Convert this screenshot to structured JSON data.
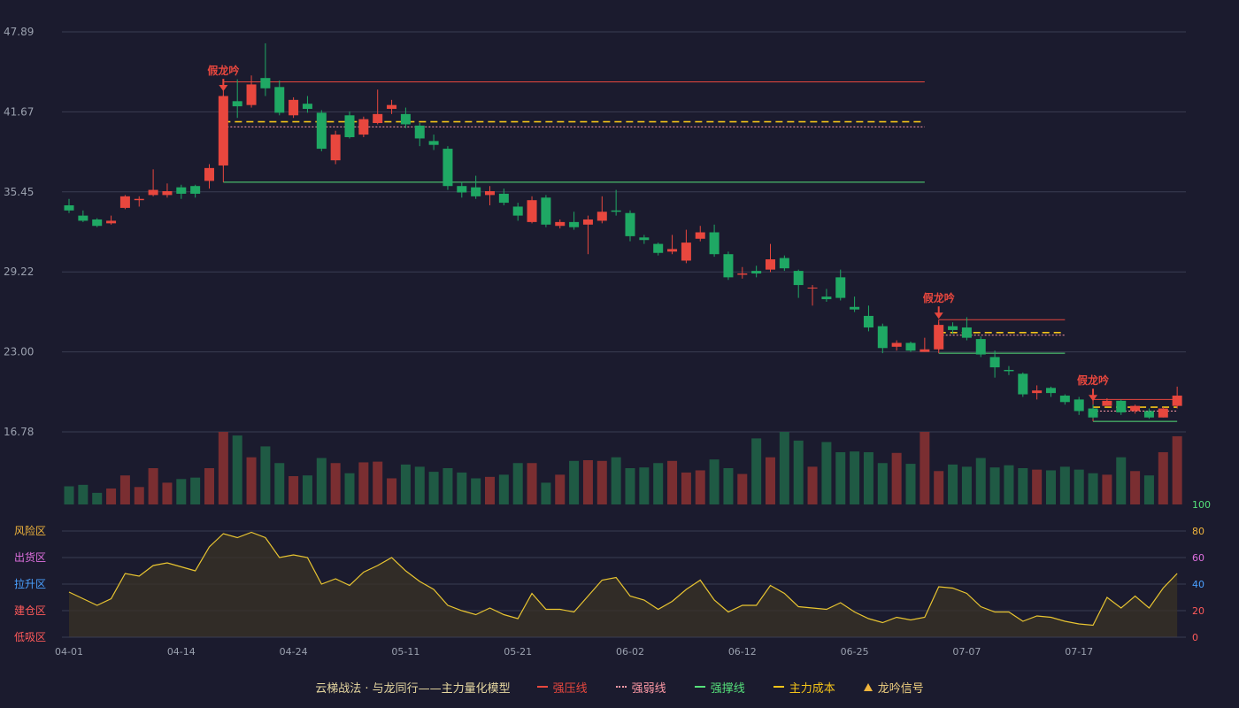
{
  "colors": {
    "background": "#1b1b2e",
    "up": "#e8473e",
    "down": "#1fa864",
    "up_volume": "#7a2e31",
    "down_volume": "#1f5a44",
    "resistance": "#e8473e",
    "weak": "#ff9aa6",
    "support": "#55e07a",
    "cost": "#f3c319",
    "risk_line": "#e9c531",
    "axis_text": "#9aa0ae",
    "grid": "#3a3d52"
  },
  "legend": {
    "title": "云梯战法 · 与龙同行——主力量化模型",
    "strong_pressure": "强压线",
    "weak_line": "强弱线",
    "support_line": "强撑线",
    "main_cost": "主力成本",
    "signal": "龙吟信号"
  },
  "signal_label": "假龙吟",
  "zone_labels": [
    "风险区",
    "出货区",
    "拉升区",
    "建仓区",
    "低吸区"
  ],
  "chart_data": {
    "type": "candlestick",
    "ylim": [
      16.78,
      47.89
    ],
    "y_ticks": [
      "47.89",
      "41.67",
      "35.45",
      "29.22",
      "23.00",
      "16.78"
    ],
    "x_tick_labels": [
      {
        "index": 0,
        "label": "04-01"
      },
      {
        "index": 8,
        "label": "04-14"
      },
      {
        "index": 16,
        "label": "04-24"
      },
      {
        "index": 24,
        "label": "05-11"
      },
      {
        "index": 32,
        "label": "05-21"
      },
      {
        "index": 40,
        "label": "06-02"
      },
      {
        "index": 48,
        "label": "06-12"
      },
      {
        "index": 56,
        "label": "06-25"
      },
      {
        "index": 64,
        "label": "07-07"
      },
      {
        "index": 72,
        "label": "07-17"
      }
    ],
    "candles": [
      [
        34.4,
        34.0,
        34.9,
        33.8
      ],
      [
        33.6,
        33.2,
        34.0,
        33.1
      ],
      [
        33.3,
        32.8,
        33.4,
        32.7
      ],
      [
        33.0,
        33.2,
        33.6,
        32.9
      ],
      [
        34.2,
        35.1,
        35.2,
        34.1
      ],
      [
        34.8,
        34.9,
        35.1,
        34.3
      ],
      [
        35.2,
        35.6,
        37.2,
        35.1
      ],
      [
        35.2,
        35.5,
        36.1,
        35.0
      ],
      [
        35.8,
        35.3,
        36.0,
        34.9
      ],
      [
        35.9,
        35.3,
        36.0,
        35.0
      ],
      [
        36.3,
        37.3,
        37.6,
        35.7
      ],
      [
        37.5,
        42.9,
        43.0,
        37.4
      ],
      [
        42.5,
        42.1,
        44.2,
        41.2
      ],
      [
        42.2,
        43.8,
        44.5,
        42.0
      ],
      [
        44.3,
        43.5,
        47.0,
        42.9
      ],
      [
        43.6,
        41.6,
        44.1,
        41.4
      ],
      [
        41.4,
        42.6,
        42.8,
        41.2
      ],
      [
        42.3,
        41.9,
        42.9,
        41.6
      ],
      [
        41.6,
        38.8,
        41.8,
        38.6
      ],
      [
        37.9,
        39.9,
        40.2,
        37.6
      ],
      [
        41.4,
        39.7,
        41.7,
        39.6
      ],
      [
        39.9,
        41.1,
        41.3,
        39.7
      ],
      [
        40.8,
        41.5,
        43.4,
        40.7
      ],
      [
        41.9,
        42.2,
        42.6,
        41.5
      ],
      [
        41.5,
        40.7,
        42.0,
        40.4
      ],
      [
        40.6,
        39.6,
        40.8,
        39.0
      ],
      [
        39.4,
        39.1,
        39.9,
        38.7
      ],
      [
        38.8,
        35.9,
        39.0,
        35.6
      ],
      [
        35.9,
        35.4,
        36.2,
        35.0
      ],
      [
        35.8,
        35.1,
        36.7,
        34.9
      ],
      [
        35.2,
        35.5,
        35.9,
        34.4
      ],
      [
        35.3,
        34.6,
        35.7,
        34.4
      ],
      [
        34.3,
        33.6,
        34.6,
        33.2
      ],
      [
        33.1,
        34.8,
        35.1,
        33.0
      ],
      [
        35.0,
        32.9,
        35.2,
        32.7
      ],
      [
        32.8,
        33.1,
        33.3,
        32.6
      ],
      [
        33.1,
        32.7,
        33.9,
        32.5
      ],
      [
        32.9,
        33.3,
        33.6,
        30.6
      ],
      [
        33.2,
        33.9,
        35.1,
        33.0
      ],
      [
        34.0,
        33.9,
        35.6,
        33.6
      ],
      [
        33.8,
        32.0,
        34.0,
        31.6
      ],
      [
        31.9,
        31.7,
        32.1,
        31.4
      ],
      [
        31.4,
        30.7,
        31.5,
        30.5
      ],
      [
        30.8,
        31.0,
        32.1,
        30.6
      ],
      [
        30.1,
        31.5,
        32.5,
        29.9
      ],
      [
        31.8,
        32.3,
        32.8,
        31.6
      ],
      [
        32.3,
        30.6,
        32.9,
        30.4
      ],
      [
        30.6,
        28.8,
        30.8,
        28.6
      ],
      [
        29.0,
        29.1,
        29.6,
        28.7
      ],
      [
        29.3,
        29.1,
        29.7,
        28.8
      ],
      [
        29.4,
        30.2,
        31.4,
        29.2
      ],
      [
        30.3,
        29.5,
        30.5,
        29.3
      ],
      [
        29.3,
        28.2,
        29.4,
        27.2
      ],
      [
        28.0,
        28.0,
        28.2,
        26.6
      ],
      [
        27.3,
        27.1,
        27.9,
        26.9
      ],
      [
        28.8,
        27.2,
        29.4,
        27.0
      ],
      [
        26.5,
        26.3,
        27.3,
        26.1
      ],
      [
        25.8,
        24.9,
        26.6,
        24.6
      ],
      [
        25.0,
        23.3,
        25.2,
        22.9
      ],
      [
        23.4,
        23.7,
        23.9,
        23.1
      ],
      [
        23.7,
        23.1,
        23.8,
        23.0
      ],
      [
        23.0,
        23.2,
        24.1,
        23.0
      ],
      [
        23.2,
        25.1,
        25.3,
        23.1
      ],
      [
        25.0,
        24.7,
        25.3,
        24.4
      ],
      [
        24.9,
        24.1,
        25.7,
        23.9
      ],
      [
        24.0,
        22.8,
        24.2,
        22.6
      ],
      [
        22.6,
        21.8,
        23.1,
        21.0
      ],
      [
        21.6,
        21.5,
        21.9,
        21.2
      ],
      [
        21.3,
        19.7,
        21.4,
        19.5
      ],
      [
        19.8,
        20.0,
        20.4,
        19.3
      ],
      [
        20.2,
        19.8,
        20.3,
        19.5
      ],
      [
        19.6,
        19.1,
        19.7,
        18.9
      ],
      [
        19.3,
        18.4,
        19.5,
        18.1
      ],
      [
        18.6,
        17.9,
        18.9,
        17.8
      ],
      [
        18.8,
        19.2,
        19.4,
        18.8
      ],
      [
        19.2,
        18.3,
        19.3,
        18.1
      ],
      [
        18.4,
        18.8,
        18.9,
        18.2
      ],
      [
        18.4,
        17.9,
        18.6,
        17.8
      ],
      [
        17.9,
        18.6,
        18.7,
        17.9
      ],
      [
        18.8,
        19.6,
        20.3,
        18.6
      ]
    ],
    "volumes": [
      25,
      27,
      16,
      22,
      40,
      24,
      50,
      30,
      35,
      37,
      50,
      100,
      95,
      65,
      80,
      57,
      39,
      40,
      64,
      57,
      43,
      58,
      59,
      36,
      55,
      52,
      45,
      50,
      44,
      36,
      38,
      41,
      57,
      57,
      30,
      41,
      60,
      61,
      60,
      65,
      50,
      51,
      57,
      60,
      44,
      47,
      62,
      50,
      42,
      91,
      65,
      100,
      88,
      52,
      86,
      72,
      73,
      72,
      57,
      71,
      56,
      100,
      46,
      55,
      52,
      64,
      51,
      54,
      50,
      48,
      47,
      52,
      48,
      43,
      41,
      65,
      46,
      40,
      72,
      94
    ],
    "risk_line": [
      34,
      29,
      24,
      29,
      48,
      46,
      54,
      56,
      53,
      50,
      68,
      78,
      75,
      79,
      75,
      60,
      62,
      60,
      40,
      44,
      39,
      49,
      54,
      60,
      50,
      42,
      36,
      24,
      20,
      17,
      22,
      17,
      14,
      33,
      21,
      21,
      19,
      31,
      43,
      45,
      31,
      28,
      21,
      27,
      36,
      43,
      28,
      19,
      24,
      24,
      39,
      33,
      23,
      22,
      21,
      26,
      19,
      14,
      11,
      15,
      13,
      15,
      38,
      37,
      33,
      23,
      19,
      19,
      12,
      16,
      15,
      12,
      10,
      9,
      30,
      22,
      31,
      22,
      37,
      48
    ],
    "level_groups": [
      {
        "start": 11,
        "end": 61,
        "strong_pressure": 44.0,
        "main_cost": 40.9,
        "weak_line": 40.5,
        "support_line": 36.2
      },
      {
        "start": 62,
        "end": 71,
        "strong_pressure": 25.5,
        "main_cost": 24.5,
        "weak_line": 24.3,
        "support_line": 22.9
      },
      {
        "start": 73,
        "end": 79,
        "strong_pressure": 19.3,
        "main_cost": 18.7,
        "weak_line": 18.4,
        "support_line": 17.6
      }
    ],
    "signals": [
      11,
      62,
      73
    ],
    "osc_ylim": [
      0,
      100
    ],
    "osc_ticks": [
      "100",
      "80",
      "60",
      "40",
      "20",
      "0"
    ]
  }
}
